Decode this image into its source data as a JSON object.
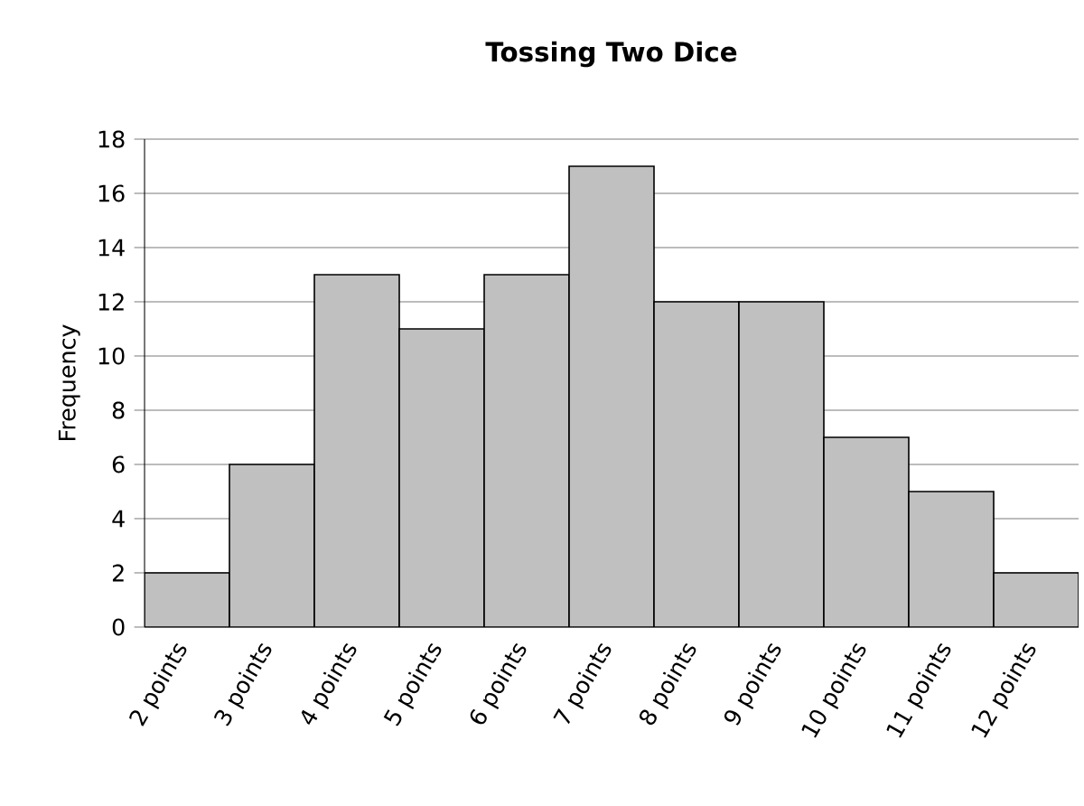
{
  "chart_data": {
    "type": "bar",
    "title": "Tossing Two Dice",
    "ylabel": "Frequency",
    "categories": [
      "2 points",
      "3 points",
      "4 points",
      "5 points",
      "6 points",
      "7 points",
      "8 points",
      "9 points",
      "10 points",
      "11 points",
      "12 points"
    ],
    "values": [
      2,
      6,
      13,
      11,
      13,
      17,
      12,
      12,
      7,
      5,
      2
    ],
    "color": "#c0c0c0",
    "ylim": [
      0,
      18
    ],
    "yticks": [
      0,
      2,
      4,
      6,
      8,
      10,
      12,
      14,
      16,
      18
    ],
    "grid": "y"
  }
}
